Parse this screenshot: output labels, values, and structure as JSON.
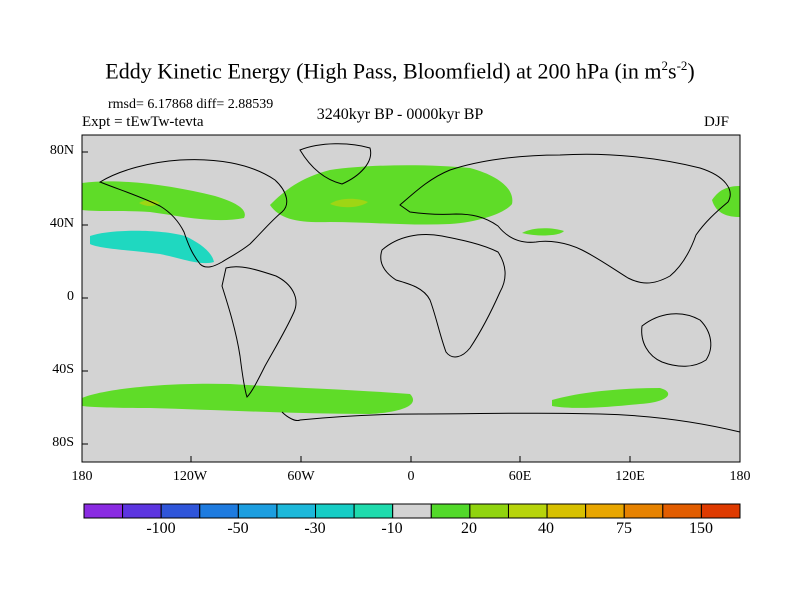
{
  "title": {
    "main": "Eddy Kinetic Energy (High Pass, Bloomfield) at 200 hPa (in m",
    "sup1": "2",
    "mid": "s",
    "sup2": "-2",
    "end": ")"
  },
  "stats": "rmsd= 6.17868 diff= 2.88539",
  "expt": "Expt = tEwTw-tevta",
  "period": "3240kyr BP - 0000kyr BP",
  "season": "DJF",
  "lat_labels": [
    "80N",
    "40N",
    "0",
    "40S",
    "80S"
  ],
  "lon_labels": [
    "180",
    "120W",
    "60W",
    "0",
    "60E",
    "120E",
    "180"
  ],
  "colorbar": {
    "colors": [
      "#8a2be2",
      "#5c35e0",
      "#2f55d9",
      "#1e7bdf",
      "#1c9ee0",
      "#1cb8da",
      "#16cdc5",
      "#1fdbad",
      "#d3d3d3",
      "#52d92a",
      "#90d40f",
      "#b7d40b",
      "#d7c000",
      "#e8a600",
      "#e68200",
      "#e25d00",
      "#de3a00"
    ],
    "tick_labels": [
      "-100",
      "-50",
      "-30",
      "-10",
      "20",
      "40",
      "75",
      "150"
    ]
  },
  "map_colors": {
    "ocean": "#d3d3d3",
    "positive": "#5fdc28",
    "strong": "#9ed614",
    "negative": "#1fd8c0",
    "coast": "#000000"
  }
}
